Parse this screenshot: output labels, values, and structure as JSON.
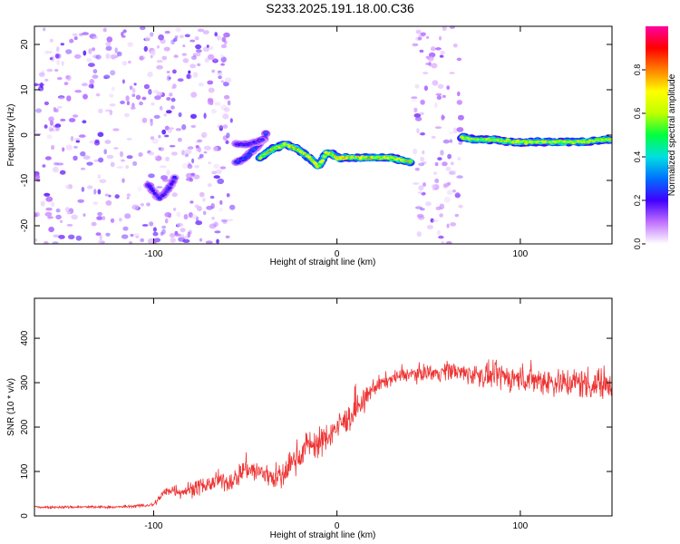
{
  "title": "S233.2025.191.18.00.C36",
  "chart_data": [
    {
      "type": "heatmap",
      "xlabel": "Height of straight line (km)",
      "ylabel": "Frequency (Hz)",
      "xlim": [
        -165,
        150
      ],
      "ylim": [
        -24,
        24
      ],
      "x_ticks": [
        -100,
        0,
        100
      ],
      "y_ticks": [
        -20,
        -10,
        0,
        10,
        20
      ],
      "grid": false,
      "colorbar": {
        "label": "Normalized spectral amplitude",
        "range": [
          0,
          1
        ],
        "ticks": [
          0.0,
          0.2,
          0.4,
          0.6,
          0.8
        ],
        "tick_labels": [
          "0.0",
          "0.2",
          "0.4",
          "0.6",
          "0.8"
        ],
        "colors": [
          "#ffffff",
          "#c070ff",
          "#4000ff",
          "#0070ff",
          "#00e0e0",
          "#00ff40",
          "#c0ff00",
          "#ffff00",
          "#ff8000",
          "#ff0000",
          "#ff00a0"
        ]
      },
      "noise_regions": [
        {
          "x": [
            -165,
            -57
          ],
          "y": [
            -24,
            24
          ],
          "level": 0.12
        },
        {
          "x": [
            42,
            68
          ],
          "y": [
            -24,
            24
          ],
          "level": 0.1
        }
      ],
      "signal_tracks": [
        {
          "x": [
            -103,
            -97,
            -92,
            -88
          ],
          "y": [
            -11,
            -14,
            -12,
            -9
          ],
          "amplitude": 0.25
        },
        {
          "x": [
            -55,
            -50,
            -45,
            -40,
            -38
          ],
          "y": [
            -6,
            -5,
            -3,
            -1,
            1
          ],
          "amplitude": 0.3
        },
        {
          "x": [
            -55,
            -48,
            -40
          ],
          "y": [
            -2,
            -2,
            -1
          ],
          "amplitude": 0.25
        },
        {
          "x": [
            -42,
            -35,
            -28,
            -22,
            -15,
            -10,
            -6,
            -3,
            0,
            10,
            20,
            30,
            40
          ],
          "y": [
            -5,
            -3,
            -2,
            -3,
            -5,
            -7,
            -4,
            -4,
            -5,
            -5,
            -5,
            -5,
            -6
          ],
          "amplitude": 0.75
        },
        {
          "x": [
            68,
            75,
            85,
            95,
            105,
            115,
            125,
            135,
            145,
            150
          ],
          "y": [
            -0.5,
            -1,
            -1,
            -1.5,
            -1.5,
            -1.5,
            -1.5,
            -1.5,
            -1,
            -1
          ],
          "amplitude": 0.7
        }
      ]
    },
    {
      "type": "line",
      "xlabel": "Height of straight line (km)",
      "ylabel": "SNR (10 * v/v)",
      "xlim": [
        -165,
        150
      ],
      "ylim": [
        0,
        490
      ],
      "x_ticks": [
        -100,
        0,
        100
      ],
      "y_ticks": [
        0,
        100,
        200,
        300,
        400
      ],
      "grid": false,
      "series": [
        {
          "color": "#ee3333",
          "x": [
            -165,
            -150,
            -140,
            -130,
            -120,
            -110,
            -100,
            -95,
            -90,
            -85,
            -80,
            -75,
            -70,
            -65,
            -60,
            -55,
            -50,
            -45,
            -40,
            -35,
            -30,
            -25,
            -20,
            -15,
            -10,
            -5,
            0,
            5,
            10,
            15,
            20,
            25,
            30,
            35,
            40,
            45,
            50,
            55,
            60,
            65,
            70,
            75,
            80,
            85,
            90,
            95,
            100,
            105,
            110,
            115,
            120,
            125,
            130,
            135,
            140,
            145,
            150
          ],
          "y": [
            20,
            20,
            20,
            20,
            20,
            22,
            25,
            50,
            60,
            55,
            60,
            65,
            70,
            80,
            75,
            85,
            110,
            100,
            95,
            90,
            85,
            120,
            140,
            165,
            160,
            180,
            200,
            215,
            235,
            260,
            290,
            300,
            310,
            315,
            320,
            320,
            325,
            320,
            330,
            325,
            320,
            320,
            315,
            315,
            315,
            310,
            310,
            310,
            305,
            305,
            300,
            300,
            300,
            300,
            295,
            300,
            300
          ],
          "noise": [
            5,
            5,
            5,
            5,
            5,
            6,
            8,
            20,
            25,
            25,
            30,
            30,
            30,
            35,
            35,
            40,
            45,
            45,
            50,
            50,
            50,
            55,
            55,
            55,
            55,
            55,
            50,
            50,
            50,
            40,
            35,
            30,
            25,
            25,
            25,
            30,
            30,
            30,
            35,
            35,
            40,
            40,
            45,
            45,
            50,
            50,
            50,
            55,
            55,
            55,
            55,
            55,
            60,
            60,
            60,
            60,
            60
          ]
        }
      ]
    }
  ]
}
